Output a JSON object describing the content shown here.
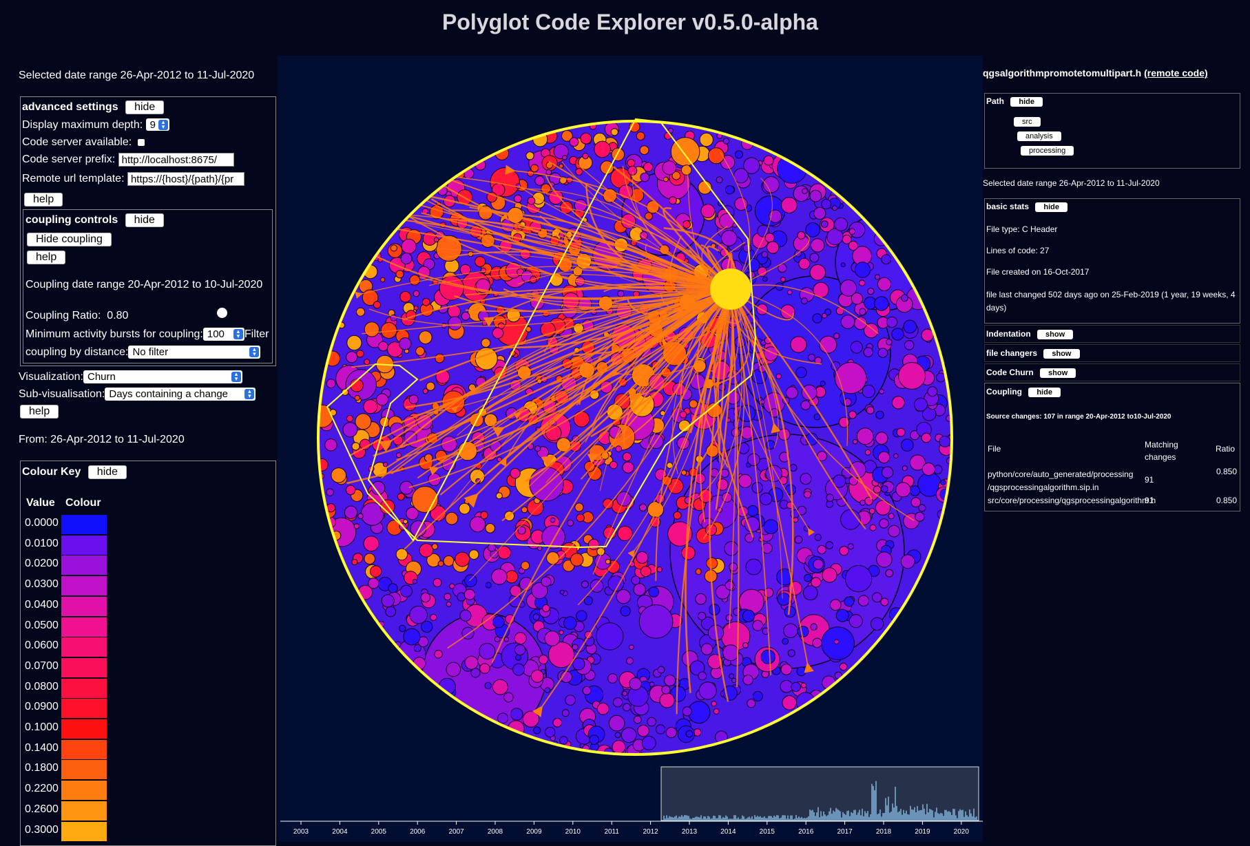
{
  "app": {
    "title": "Polyglot Code Explorer v0.5.0-alpha"
  },
  "left": {
    "date_range": "Selected date range 26-Apr-2012 to 11-Jul-2020",
    "advanced": {
      "title": "advanced settings",
      "hide": "hide",
      "depth_label": "Display maximum depth:",
      "depth_value": "9",
      "server_label": "Code server available:",
      "prefix_label": "Code server prefix:",
      "prefix_value": "http://localhost:8675/",
      "remote_label": "Remote url template:",
      "remote_value": "https://{host}/{path}/{pr",
      "help": "help"
    },
    "coupling": {
      "title": "coupling controls",
      "hide": "hide",
      "hide_coupling": "Hide coupling",
      "help": "help",
      "date_range": "Coupling date range 20-Apr-2012 to 10-Jul-2020",
      "ratio_label": "Coupling Ratio:",
      "ratio_value": "0.80",
      "min_bursts_label": "Minimum activity bursts for coupling:",
      "min_bursts_value": "100",
      "filter_label": "Filter",
      "distance_label": "coupling by distance:",
      "distance_value": "No filter"
    },
    "visualization_label": "Visualization:",
    "visualization_value": "Churn",
    "subvis_label": "Sub-visualisation:",
    "subvis_value": "Days containing a change",
    "help": "help",
    "from": "From: 26-Apr-2012 to 11-Jul-2020",
    "colour_key": {
      "title": "Colour Key",
      "hide": "hide",
      "value_header": "Value",
      "colour_header": "Colour",
      "rows": [
        {
          "value": "0.0000",
          "color": "#1010ff"
        },
        {
          "value": "0.0100",
          "color": "#6a10f0"
        },
        {
          "value": "0.0200",
          "color": "#9a10dc"
        },
        {
          "value": "0.0300",
          "color": "#c010c8"
        },
        {
          "value": "0.0400",
          "color": "#e010a8"
        },
        {
          "value": "0.0500",
          "color": "#f01090"
        },
        {
          "value": "0.0600",
          "color": "#f81070"
        },
        {
          "value": "0.0700",
          "color": "#fa1058"
        },
        {
          "value": "0.0800",
          "color": "#fc1040"
        },
        {
          "value": "0.0900",
          "color": "#fe1028"
        },
        {
          "value": "0.1000",
          "color": "#ff1010"
        },
        {
          "value": "0.1400",
          "color": "#ff4410"
        },
        {
          "value": "0.1800",
          "color": "#ff6010"
        },
        {
          "value": "0.2200",
          "color": "#ff7c10"
        },
        {
          "value": "0.2600",
          "color": "#ff9410"
        },
        {
          "value": "0.3000",
          "color": "#ffaa10"
        }
      ]
    }
  },
  "timeline": {
    "years": [
      "2003",
      "2004",
      "2005",
      "2006",
      "2007",
      "2008",
      "2009",
      "2010",
      "2011",
      "2012",
      "2013",
      "2014",
      "2015",
      "2016",
      "2017",
      "2018",
      "2019",
      "2020"
    ]
  },
  "right": {
    "file_name": "qgsalgorithmpromotetomultipart.h",
    "remote_link": "(remote code)",
    "path": {
      "label": "Path",
      "hide": "hide",
      "items": [
        "src",
        "analysis",
        "processing"
      ]
    },
    "date_range": "Selected date range 26-Apr-2012 to 11-Jul-2020",
    "basic_stats": {
      "label": "basic stats",
      "hide": "hide",
      "file_type": "File type: C Header",
      "lines": "Lines of code: 27",
      "created": "File created on 16-Oct-2017",
      "changed": "file last changed 502 days ago on 25-Feb-2019 (1 year, 19 weeks, 4 days)"
    },
    "indentation": {
      "label": "Indentation",
      "btn": "show"
    },
    "file_changers": {
      "label": "file changers",
      "btn": "show"
    },
    "code_churn": {
      "label": "Code Churn",
      "btn": "show"
    },
    "coupling": {
      "label": "Coupling",
      "hide": "hide",
      "source_changes": "Source changes: 107 in range 20-Apr-2012 to10-Jul-2020",
      "headers": {
        "file": "File",
        "matching": "Matching changes",
        "ratio": "Ratio"
      },
      "rows": [
        {
          "file": "python/core/auto_generated/processing /qgsprocessingalgorithm.sip.in",
          "matching": "91",
          "ratio": "0.850"
        },
        {
          "file": "src/core/processing/qgsprocessingalgorithm.h",
          "matching": "91",
          "ratio": "0.850"
        }
      ]
    }
  }
}
